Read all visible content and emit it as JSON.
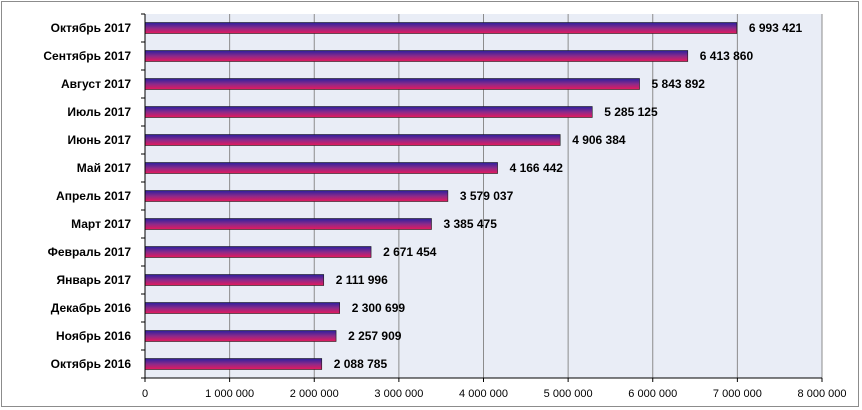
{
  "chart_data": {
    "type": "bar",
    "orientation": "horizontal",
    "categories": [
      "Октябрь 2017",
      "Сентябрь 2017",
      "Август 2017",
      "Июль 2017",
      "Июнь 2017",
      "Май 2017",
      "Апрель 2017",
      "Март 2017",
      "Февраль 2017",
      "Январь 2017",
      "Декабрь 2016",
      "Ноябрь 2016",
      "Октябрь 2016"
    ],
    "values": [
      6993421,
      6413860,
      5843892,
      5285125,
      4906384,
      4166442,
      3579037,
      3385475,
      2671454,
      2111996,
      2300699,
      2257909,
      2088785
    ],
    "value_labels": [
      "6 993 421",
      "6 413 860",
      "5 843 892",
      "5 285 125",
      "4 906 384",
      "4 166 442",
      "3 579 037",
      "3 385 475",
      "2 671 454",
      "2 111 996",
      "2 300 699",
      "2 257 909",
      "2 088 785"
    ],
    "x_ticks": [
      0,
      1000000,
      2000000,
      3000000,
      4000000,
      5000000,
      6000000,
      7000000,
      8000000
    ],
    "x_tick_labels": [
      "0",
      "1 000 000",
      "2 000 000",
      "3 000 000",
      "4 000 000",
      "5 000 000",
      "6 000 000",
      "7 000 000",
      "8 000 000"
    ],
    "xlim": [
      0,
      8000000
    ],
    "title": "",
    "xlabel": "",
    "ylabel": "",
    "grid": "vertical",
    "colors": {
      "plot_background": "#e9edf6",
      "bar_top": "#2b1f9e",
      "bar_mid": "#8a2a8a",
      "bar_bottom": "#e8195c",
      "gridline": "#8c8c8c"
    }
  }
}
